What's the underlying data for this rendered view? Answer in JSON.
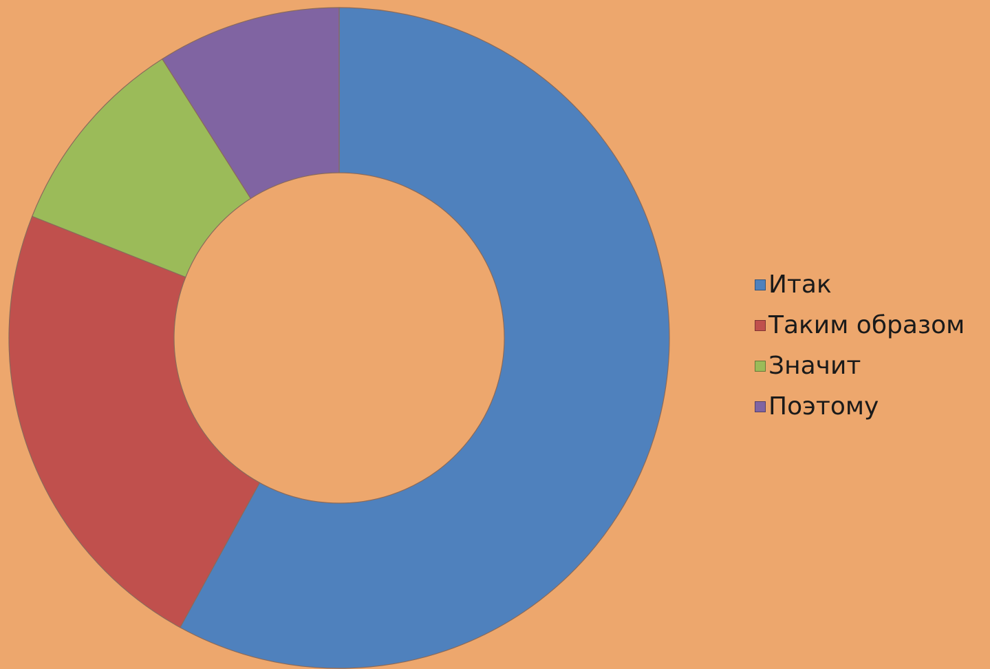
{
  "colors": {
    "background": "#EDA76D",
    "hole": "#EDA76D",
    "slice_border": "#8a6a5a"
  },
  "chart_data": {
    "type": "pie",
    "variant": "donut",
    "title": "",
    "start_angle_deg": 0,
    "direction": "clockwise",
    "legend_placement": "right",
    "categories": [
      "Итак",
      "Таким образом",
      "Значит",
      "Поэтому"
    ],
    "values": [
      58,
      23,
      10,
      9
    ],
    "colors": [
      "#4F81BD",
      "#C0504D",
      "#9BBB59",
      "#8064A2"
    ]
  },
  "legend": {
    "items": [
      {
        "label": "Итак",
        "color": "#4F81BD"
      },
      {
        "label": "Таким образом",
        "color": "#C0504D"
      },
      {
        "label": "Значит",
        "color": "#9BBB59"
      },
      {
        "label": "Поэтому",
        "color": "#8064A2"
      }
    ]
  }
}
